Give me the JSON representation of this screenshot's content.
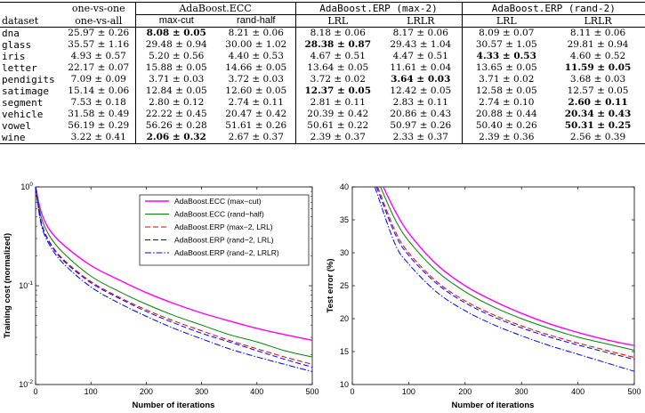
{
  "table": {
    "header_row1": {
      "col_ovo": "one-vs-one",
      "ecc": "AdaBoost.ECC",
      "erp_max": "AdaBoost.ERP (max-2)",
      "erp_rand": "AdaBoost.ERP (rand-2)"
    },
    "header_row2": {
      "dataset": "dataset",
      "ova": "one-vs-all",
      "maxcut": "max-cut",
      "randhalf": "rand-half",
      "lrl1": "LRL",
      "lrlr1": "LRLR",
      "lrl2": "LRL",
      "lrlr2": "LRLR"
    },
    "rows": [
      {
        "name": "dna",
        "cells": [
          "25.97 ± 0.26",
          "8.08 ± 0.05",
          "8.21 ± 0.06",
          "8.18 ± 0.06",
          "8.17 ± 0.06",
          "8.09 ± 0.07",
          "8.11 ± 0.06"
        ],
        "bold": [
          1
        ]
      },
      {
        "name": "glass",
        "cells": [
          "35.57 ± 1.16",
          "29.48 ± 0.94",
          "30.00 ± 1.02",
          "28.38 ± 0.87",
          "29.43 ± 1.04",
          "30.57 ± 1.05",
          "29.81 ± 0.94"
        ],
        "bold": [
          3
        ]
      },
      {
        "name": "iris",
        "cells": [
          "4.93 ± 0.57",
          "5.20 ± 0.56",
          "4.40 ± 0.53",
          "4.67 ± 0.51",
          "4.47 ± 0.51",
          "4.33 ± 0.53",
          "4.60 ± 0.52"
        ],
        "bold": [
          5
        ]
      },
      {
        "name": "letter",
        "cells": [
          "22.17 ± 0.07",
          "15.88 ± 0.05",
          "14.66 ± 0.05",
          "13.64 ± 0.05",
          "11.61 ± 0.04",
          "13.65 ± 0.05",
          "11.59 ± 0.05"
        ],
        "bold": [
          6
        ]
      },
      {
        "name": "pendigits",
        "cells": [
          "7.09 ± 0.09",
          "3.71 ± 0.03",
          "3.72 ± 0.03",
          "3.72 ± 0.02",
          "3.64 ± 0.03",
          "3.71 ± 0.02",
          "3.68 ± 0.03"
        ],
        "bold": [
          4
        ]
      },
      {
        "name": "satimage",
        "cells": [
          "15.14 ± 0.06",
          "12.84 ± 0.05",
          "12.60 ± 0.05",
          "12.37 ± 0.05",
          "12.42 ± 0.05",
          "12.58 ± 0.05",
          "12.57 ± 0.05"
        ],
        "bold": [
          3
        ]
      },
      {
        "name": "segment",
        "cells": [
          "7.53 ± 0.18",
          "2.80 ± 0.12",
          "2.74 ± 0.11",
          "2.81 ± 0.11",
          "2.83 ± 0.11",
          "2.74 ± 0.10",
          "2.60 ± 0.11"
        ],
        "bold": [
          6
        ]
      },
      {
        "name": "vehicle",
        "cells": [
          "31.58 ± 0.49",
          "22.22 ± 0.45",
          "20.47 ± 0.42",
          "20.39 ± 0.42",
          "20.86 ± 0.43",
          "20.88 ± 0.44",
          "20.34 ± 0.43"
        ],
        "bold": [
          6
        ]
      },
      {
        "name": "vowel",
        "cells": [
          "56.19 ± 0.29",
          "56.26 ± 0.28",
          "51.61 ± 0.26",
          "50.61 ± 0.22",
          "50.97 ± 0.26",
          "50.40 ± 0.26",
          "50.31 ± 0.25"
        ],
        "bold": [
          6
        ]
      },
      {
        "name": "wine",
        "cells": [
          "3.22 ± 0.41",
          "2.06 ± 0.32",
          "2.67 ± 0.37",
          "2.39 ± 0.37",
          "2.33 ± 0.37",
          "2.39 ± 0.36",
          "2.56 ± 0.39"
        ],
        "bold": [
          1
        ]
      }
    ]
  },
  "chart_data": [
    {
      "type": "line",
      "xlabel": "Number of iterations",
      "ylabel": "Training cost (normalized)",
      "xlim": [
        0,
        500
      ],
      "ylim": [
        0.01,
        1
      ],
      "yscale": "log",
      "xticks": [
        "0",
        "100",
        "200",
        "300",
        "400",
        "500"
      ],
      "yticks": [
        "10^-2",
        "10^-1",
        "10^0"
      ],
      "grid": false,
      "legend_position": "top-right",
      "series": [
        {
          "name": "AdaBoost.ECC (max−cut)",
          "color": "#ff00ff",
          "style": "solid",
          "x": [
            0,
            10,
            25,
            50,
            100,
            150,
            200,
            250,
            300,
            350,
            400,
            450,
            500
          ],
          "y": [
            1.0,
            0.56,
            0.37,
            0.26,
            0.16,
            0.115,
            0.085,
            0.066,
            0.053,
            0.044,
            0.037,
            0.032,
            0.028
          ]
        },
        {
          "name": "AdaBoost.ECC (rand−half)",
          "color": "#008000",
          "style": "solid",
          "x": [
            0,
            10,
            25,
            50,
            100,
            150,
            200,
            250,
            300,
            350,
            400,
            450,
            500
          ],
          "y": [
            1.0,
            0.5,
            0.32,
            0.215,
            0.125,
            0.088,
            0.065,
            0.05,
            0.04,
            0.032,
            0.027,
            0.022,
            0.019
          ]
        },
        {
          "name": "AdaBoost.ERP (max−2, LRL)",
          "color": "#dd0000",
          "style": "dashed",
          "x": [
            0,
            10,
            25,
            50,
            100,
            150,
            200,
            250,
            300,
            350,
            400,
            450,
            500
          ],
          "y": [
            1.0,
            0.45,
            0.28,
            0.185,
            0.11,
            0.077,
            0.057,
            0.044,
            0.035,
            0.028,
            0.023,
            0.019,
            0.016
          ]
        },
        {
          "name": "AdaBoost.ERP (rand−2, LRL)",
          "color": "#0000ff",
          "style": "dashed",
          "x": [
            0,
            10,
            25,
            50,
            100,
            150,
            200,
            250,
            300,
            350,
            400,
            450,
            500
          ],
          "y": [
            1.0,
            0.44,
            0.275,
            0.18,
            0.107,
            0.075,
            0.055,
            0.042,
            0.033,
            0.027,
            0.022,
            0.018,
            0.015
          ]
        },
        {
          "name": "AdaBoost.ERP (rand−2, LRLR)",
          "color": "#0000ff",
          "style": "dashdot",
          "x": [
            0,
            10,
            25,
            50,
            100,
            150,
            200,
            250,
            300,
            350,
            400,
            450,
            500
          ],
          "y": [
            1.0,
            0.42,
            0.26,
            0.168,
            0.097,
            0.067,
            0.049,
            0.037,
            0.029,
            0.023,
            0.019,
            0.016,
            0.0135
          ]
        }
      ]
    },
    {
      "type": "line",
      "xlabel": "Number of iterations",
      "ylabel": "Test error (%)",
      "xlim": [
        0,
        500
      ],
      "ylim": [
        10,
        40
      ],
      "xticks": [
        "0",
        "100",
        "200",
        "300",
        "400",
        "500"
      ],
      "yticks": [
        "10",
        "15",
        "20",
        "25",
        "30",
        "35",
        "40"
      ],
      "grid": false,
      "series": [
        {
          "name": "AdaBoost.ECC (max−cut)",
          "color": "#ff00ff",
          "style": "solid",
          "x": [
            55,
            75,
            100,
            150,
            200,
            250,
            300,
            350,
            400,
            450,
            500
          ],
          "y": [
            40,
            36.5,
            33.0,
            28.2,
            25.0,
            22.7,
            20.8,
            19.2,
            17.9,
            16.8,
            15.9
          ]
        },
        {
          "name": "AdaBoost.ECC (rand−half)",
          "color": "#008000",
          "style": "solid",
          "x": [
            50,
            75,
            100,
            150,
            200,
            250,
            300,
            350,
            400,
            450,
            500
          ],
          "y": [
            40,
            35.2,
            31.8,
            27.2,
            24.1,
            21.8,
            20.0,
            18.5,
            17.2,
            16.2,
            15.2
          ]
        },
        {
          "name": "AdaBoost.ERP (max−2, LRL)",
          "color": "#dd0000",
          "style": "dashed",
          "x": [
            45,
            75,
            100,
            150,
            200,
            250,
            300,
            350,
            400,
            450,
            500
          ],
          "y": [
            40,
            33.5,
            30.0,
            25.6,
            22.7,
            20.6,
            18.9,
            17.5,
            16.3,
            15.2,
            14.1
          ]
        },
        {
          "name": "AdaBoost.ERP (rand−2, LRL)",
          "color": "#0000ff",
          "style": "dashed",
          "x": [
            43,
            75,
            100,
            150,
            200,
            250,
            300,
            350,
            400,
            450,
            500
          ],
          "y": [
            40,
            33.0,
            29.6,
            25.3,
            22.4,
            20.3,
            18.6,
            17.2,
            16.0,
            14.9,
            13.8
          ]
        },
        {
          "name": "AdaBoost.ERP (rand−2, LRLR)",
          "color": "#0000ff",
          "style": "dashdot",
          "x": [
            40,
            75,
            100,
            150,
            200,
            250,
            300,
            350,
            400,
            450,
            500
          ],
          "y": [
            40,
            31.5,
            28.3,
            24.0,
            21.2,
            19.1,
            17.4,
            15.9,
            14.6,
            13.3,
            12.0
          ]
        }
      ]
    }
  ]
}
